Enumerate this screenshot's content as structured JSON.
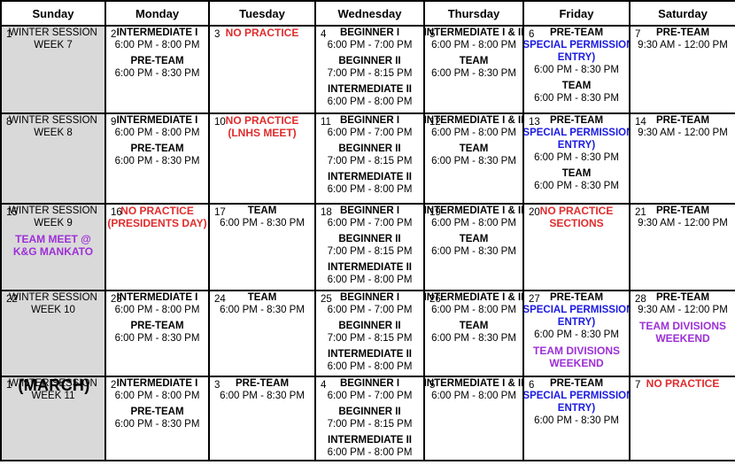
{
  "colors": {
    "red": "#e02c2c",
    "blue": "#1a1ae0",
    "purple": "#9d2fd6",
    "sunday_bg": "#d9d9d9",
    "border": "#000000"
  },
  "header": {
    "days": [
      "Sunday",
      "Monday",
      "Tuesday",
      "Wednesday",
      "Thursday",
      "Friday",
      "Saturday"
    ]
  },
  "weeks": [
    {
      "days": [
        {
          "date": "1",
          "lines": [
            {
              "text": "WINTER SESSION",
              "style": "plain"
            },
            {
              "text": "WEEK 7",
              "style": "plain"
            }
          ]
        },
        {
          "date": "2",
          "lines": [
            {
              "text": "INTERMEDIATE I",
              "style": "bold"
            },
            {
              "text": "6:00 PM - 8:00 PM",
              "style": "time"
            },
            {
              "text": "PRE-TEAM",
              "style": "bold"
            },
            {
              "text": "6:00 PM - 8:30 PM",
              "style": "time"
            }
          ]
        },
        {
          "date": "3",
          "lines": [
            {
              "text": "NO PRACTICE",
              "style": "red"
            }
          ]
        },
        {
          "date": "4",
          "lines": [
            {
              "text": "BEGINNER I",
              "style": "bold"
            },
            {
              "text": "6:00 PM - 7:00 PM",
              "style": "time"
            },
            {
              "text": "BEGINNER II",
              "style": "bold"
            },
            {
              "text": "7:00 PM - 8:15 PM",
              "style": "time"
            },
            {
              "text": "INTERMEDIATE II",
              "style": "bold"
            },
            {
              "text": "6:00 PM - 8:00 PM",
              "style": "time"
            }
          ]
        },
        {
          "date": "5",
          "lines": [
            {
              "text": "INTERMEDIATE I & II",
              "style": "bold"
            },
            {
              "text": "6:00 PM - 8:00 PM",
              "style": "time"
            },
            {
              "text": "TEAM",
              "style": "bold"
            },
            {
              "text": "6:00 PM - 8:30 PM",
              "style": "time"
            }
          ]
        },
        {
          "date": "6",
          "lines": [
            {
              "text": "PRE-TEAM",
              "style": "bold"
            },
            {
              "text": "(SPECIAL PERMISSION",
              "style": "blue"
            },
            {
              "text": "ENTRY)",
              "style": "blue"
            },
            {
              "text": "6:00 PM - 8:30 PM",
              "style": "time"
            },
            {
              "text": "TEAM",
              "style": "bold"
            },
            {
              "text": "6:00 PM - 8:30 PM",
              "style": "time"
            }
          ]
        },
        {
          "date": "7",
          "lines": [
            {
              "text": "PRE-TEAM",
              "style": "bold"
            },
            {
              "text": "9:30 AM - 12:00 PM",
              "style": "time"
            }
          ]
        }
      ]
    },
    {
      "days": [
        {
          "date": "8",
          "lines": [
            {
              "text": "WINTER SESSION",
              "style": "plain"
            },
            {
              "text": "WEEK 8",
              "style": "plain"
            }
          ]
        },
        {
          "date": "9",
          "lines": [
            {
              "text": "INTERMEDIATE I",
              "style": "bold"
            },
            {
              "text": "6:00 PM - 8:00 PM",
              "style": "time"
            },
            {
              "text": "PRE-TEAM",
              "style": "bold"
            },
            {
              "text": "6:00 PM - 8:30 PM",
              "style": "time"
            }
          ]
        },
        {
          "date": "10",
          "lines": [
            {
              "text": "NO PRACTICE",
              "style": "red"
            },
            {
              "text": "(LNHS MEET)",
              "style": "red"
            }
          ]
        },
        {
          "date": "11",
          "lines": [
            {
              "text": "BEGINNER I",
              "style": "bold"
            },
            {
              "text": "6:00 PM - 7:00 PM",
              "style": "time"
            },
            {
              "text": "BEGINNER II",
              "style": "bold"
            },
            {
              "text": "7:00 PM - 8:15 PM",
              "style": "time"
            },
            {
              "text": "INTERMEDIATE II",
              "style": "bold"
            },
            {
              "text": "6:00 PM - 8:00 PM",
              "style": "time"
            }
          ]
        },
        {
          "date": "12",
          "lines": [
            {
              "text": "INTERMEDIATE I & II",
              "style": "bold"
            },
            {
              "text": "6:00 PM - 8:00 PM",
              "style": "time"
            },
            {
              "text": "TEAM",
              "style": "bold"
            },
            {
              "text": "6:00 PM - 8:30 PM",
              "style": "time"
            }
          ]
        },
        {
          "date": "13",
          "lines": [
            {
              "text": "PRE-TEAM",
              "style": "bold"
            },
            {
              "text": "(SPECIAL PERMISSION",
              "style": "blue"
            },
            {
              "text": "ENTRY)",
              "style": "blue"
            },
            {
              "text": "6:00 PM - 8:30 PM",
              "style": "time"
            },
            {
              "text": "TEAM",
              "style": "bold"
            },
            {
              "text": "6:00 PM - 8:30 PM",
              "style": "time"
            }
          ]
        },
        {
          "date": "14",
          "lines": [
            {
              "text": "PRE-TEAM",
              "style": "bold"
            },
            {
              "text": "9:30 AM - 12:00 PM",
              "style": "time"
            }
          ]
        }
      ]
    },
    {
      "days": [
        {
          "date": "15",
          "lines": [
            {
              "text": "WINTER SESSION",
              "style": "plain"
            },
            {
              "text": "WEEK 9",
              "style": "plain"
            },
            {
              "text": "TEAM MEET @",
              "style": "purple"
            },
            {
              "text": "K&G MANKATO",
              "style": "purple"
            }
          ]
        },
        {
          "date": "16",
          "lines": [
            {
              "text": "NO PRACTICE",
              "style": "red"
            },
            {
              "text": "(PRESIDENTS DAY)",
              "style": "red"
            }
          ]
        },
        {
          "date": "17",
          "lines": [
            {
              "text": "TEAM",
              "style": "bold"
            },
            {
              "text": "6:00 PM - 8:30 PM",
              "style": "time"
            }
          ]
        },
        {
          "date": "18",
          "lines": [
            {
              "text": "BEGINNER I",
              "style": "bold"
            },
            {
              "text": "6:00 PM - 7:00 PM",
              "style": "time"
            },
            {
              "text": "BEGINNER II",
              "style": "bold"
            },
            {
              "text": "7:00 PM - 8:15 PM",
              "style": "time"
            },
            {
              "text": "INTERMEDIATE II",
              "style": "bold"
            },
            {
              "text": "6:00 PM - 8:00 PM",
              "style": "time"
            }
          ]
        },
        {
          "date": "19",
          "lines": [
            {
              "text": "INTERMEDIATE I & II",
              "style": "bold"
            },
            {
              "text": "6:00 PM - 8:00 PM",
              "style": "time"
            },
            {
              "text": "TEAM",
              "style": "bold"
            },
            {
              "text": "6:00 PM - 8:30 PM",
              "style": "time"
            }
          ]
        },
        {
          "date": "20",
          "lines": [
            {
              "text": "NO PRACTICE",
              "style": "red"
            },
            {
              "text": "SECTIONS",
              "style": "red"
            }
          ]
        },
        {
          "date": "21",
          "lines": [
            {
              "text": "PRE-TEAM",
              "style": "bold"
            },
            {
              "text": "9:30 AM - 12:00 PM",
              "style": "time"
            }
          ]
        }
      ]
    },
    {
      "days": [
        {
          "date": "22",
          "lines": [
            {
              "text": "WINTER SESSION",
              "style": "plain"
            },
            {
              "text": "WEEK 10",
              "style": "plain"
            }
          ]
        },
        {
          "date": "23",
          "lines": [
            {
              "text": "INTERMEDIATE I",
              "style": "bold"
            },
            {
              "text": "6:00 PM - 8:00 PM",
              "style": "time"
            },
            {
              "text": "PRE-TEAM",
              "style": "bold"
            },
            {
              "text": "6:00 PM - 8:30 PM",
              "style": "time"
            }
          ]
        },
        {
          "date": "24",
          "lines": [
            {
              "text": "TEAM",
              "style": "bold"
            },
            {
              "text": "6:00 PM - 8:30 PM",
              "style": "time"
            }
          ]
        },
        {
          "date": "25",
          "lines": [
            {
              "text": "BEGINNER I",
              "style": "bold"
            },
            {
              "text": "6:00 PM - 7:00 PM",
              "style": "time"
            },
            {
              "text": "BEGINNER II",
              "style": "bold"
            },
            {
              "text": "7:00 PM - 8:15 PM",
              "style": "time"
            },
            {
              "text": "INTERMEDIATE II",
              "style": "bold"
            },
            {
              "text": "6:00 PM - 8:00 PM",
              "style": "time"
            }
          ]
        },
        {
          "date": "26",
          "lines": [
            {
              "text": "INTERMEDIATE I & II",
              "style": "bold"
            },
            {
              "text": "6:00 PM - 8:00 PM",
              "style": "time"
            },
            {
              "text": "TEAM",
              "style": "bold"
            },
            {
              "text": "6:00 PM - 8:30 PM",
              "style": "time"
            }
          ]
        },
        {
          "date": "27",
          "lines": [
            {
              "text": "PRE-TEAM",
              "style": "bold"
            },
            {
              "text": "(SPECIAL PERMISSION",
              "style": "blue"
            },
            {
              "text": "ENTRY)",
              "style": "blue"
            },
            {
              "text": "6:00 PM - 8:30 PM",
              "style": "time"
            },
            {
              "text": "TEAM DIVISIONS",
              "style": "purple"
            },
            {
              "text": "WEEKEND",
              "style": "purple"
            }
          ]
        },
        {
          "date": "28",
          "lines": [
            {
              "text": "PRE-TEAM",
              "style": "bold"
            },
            {
              "text": "9:30 AM - 12:00 PM",
              "style": "time"
            },
            {
              "text": "TEAM DIVISIONS",
              "style": "purple"
            },
            {
              "text": "WEEKEND",
              "style": "purple"
            }
          ]
        }
      ]
    },
    {
      "days": [
        {
          "date": "1",
          "month": "(MARCH)",
          "lines": [
            {
              "text": "WINTER SESSION",
              "style": "plain"
            },
            {
              "text": "WEEK 11",
              "style": "plain"
            }
          ]
        },
        {
          "date": "2",
          "lines": [
            {
              "text": "INTERMEDIATE I",
              "style": "bold"
            },
            {
              "text": "6:00 PM - 8:00 PM",
              "style": "time"
            },
            {
              "text": "PRE-TEAM",
              "style": "bold"
            },
            {
              "text": "6:00 PM - 8:30 PM",
              "style": "time"
            }
          ]
        },
        {
          "date": "3",
          "lines": [
            {
              "text": "PRE-TEAM",
              "style": "bold"
            },
            {
              "text": "6:00 PM - 8:30 PM",
              "style": "time"
            }
          ]
        },
        {
          "date": "4",
          "lines": [
            {
              "text": "BEGINNER I",
              "style": "bold"
            },
            {
              "text": "6:00 PM - 7:00 PM",
              "style": "time"
            },
            {
              "text": "BEGINNER II",
              "style": "bold"
            },
            {
              "text": "7:00 PM - 8:15 PM",
              "style": "time"
            },
            {
              "text": "INTERMEDIATE II",
              "style": "bold"
            },
            {
              "text": "6:00 PM - 8:00 PM",
              "style": "time"
            }
          ]
        },
        {
          "date": "5",
          "lines": [
            {
              "text": "INTERMEDIATE I & II",
              "style": "bold"
            },
            {
              "text": "6:00 PM - 8:00 PM",
              "style": "time"
            }
          ]
        },
        {
          "date": "6",
          "lines": [
            {
              "text": "PRE-TEAM",
              "style": "bold"
            },
            {
              "text": "(SPECIAL PERMISSION",
              "style": "blue"
            },
            {
              "text": "ENTRY)",
              "style": "blue"
            },
            {
              "text": "6:00 PM - 8:30 PM",
              "style": "time"
            }
          ]
        },
        {
          "date": "7",
          "lines": [
            {
              "text": "NO PRACTICE",
              "style": "red"
            }
          ]
        }
      ]
    }
  ]
}
